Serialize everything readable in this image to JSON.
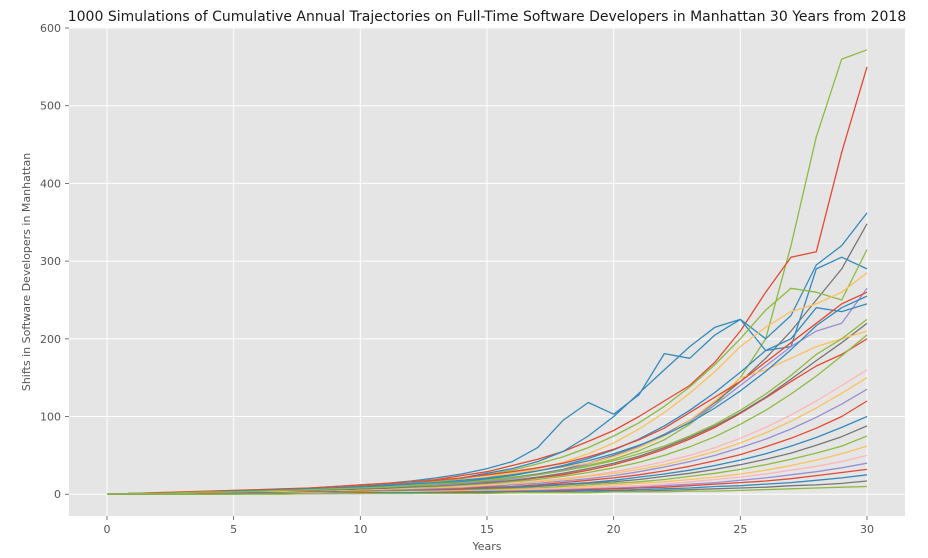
{
  "chart_data": {
    "type": "line",
    "title": "1000 Simulations of Cumulative Annual Trajectories on Full-Time Software Developers in Manhattan 30 Years from 2018",
    "xlabel": "Years",
    "ylabel": "Shifts in Software Developers in Manhattan",
    "xlim": [
      -1.5,
      31.5
    ],
    "ylim": [
      -28,
      600
    ],
    "xticks": [
      0,
      5,
      10,
      15,
      20,
      25,
      30
    ],
    "yticks": [
      0,
      100,
      200,
      300,
      400,
      500,
      600
    ],
    "grid": true,
    "legend": "none",
    "colors": [
      "#E24A33",
      "#348ABD",
      "#988ED5",
      "#777777",
      "#FBC15E",
      "#8EBA42",
      "#FFB5B8"
    ],
    "background": "#E5E5E5",
    "series": [
      {
        "color": "#8EBA42",
        "values": [
          0,
          1,
          1,
          2,
          2,
          3,
          4,
          5,
          6,
          7,
          8,
          10,
          12,
          14,
          16,
          19,
          22,
          26,
          31,
          37,
          45,
          56,
          70,
          90,
          115,
          150,
          200,
          320,
          460,
          560,
          572
        ]
      },
      {
        "color": "#E24A33",
        "values": [
          0,
          1,
          2,
          2,
          3,
          4,
          5,
          6,
          7,
          9,
          11,
          13,
          16,
          19,
          24,
          29,
          37,
          45,
          55,
          68,
          82,
          100,
          120,
          140,
          170,
          210,
          260,
          305,
          312,
          440,
          550
        ]
      },
      {
        "color": "#348ABD",
        "values": [
          0,
          1,
          1,
          2,
          3,
          4,
          5,
          6,
          7,
          8,
          10,
          12,
          14,
          17,
          21,
          27,
          33,
          42,
          55,
          75,
          100,
          130,
          160,
          190,
          215,
          225,
          200,
          230,
          295,
          320,
          362
        ]
      },
      {
        "color": "#777777",
        "values": [
          0,
          1,
          1,
          2,
          2,
          3,
          3,
          4,
          5,
          6,
          7,
          8,
          10,
          12,
          14,
          17,
          21,
          26,
          32,
          40,
          50,
          62,
          77,
          95,
          118,
          145,
          175,
          210,
          250,
          290,
          348
        ]
      },
      {
        "color": "#348ABD",
        "values": [
          0,
          1,
          1,
          2,
          3,
          4,
          5,
          6,
          8,
          10,
          12,
          14,
          17,
          21,
          26,
          33,
          42,
          60,
          95,
          118,
          103,
          128,
          181,
          175,
          205,
          225,
          185,
          190,
          290,
          305,
          290
        ]
      },
      {
        "color": "#8EBA42",
        "values": [
          0,
          1,
          1,
          2,
          2,
          3,
          4,
          5,
          6,
          7,
          9,
          11,
          13,
          16,
          20,
          25,
          31,
          39,
          48,
          60,
          75,
          92,
          113,
          138,
          167,
          200,
          237,
          265,
          260,
          250,
          315
        ]
      },
      {
        "color": "#FBC15E",
        "values": [
          0,
          1,
          1,
          2,
          2,
          3,
          4,
          5,
          6,
          7,
          8,
          10,
          12,
          15,
          18,
          22,
          27,
          33,
          41,
          52,
          66,
          84,
          105,
          130,
          158,
          190,
          215,
          235,
          245,
          260,
          285
        ]
      },
      {
        "color": "#988ED5",
        "values": [
          0,
          1,
          1,
          1,
          2,
          2,
          3,
          3,
          4,
          5,
          6,
          7,
          9,
          11,
          13,
          16,
          20,
          25,
          31,
          39,
          49,
          61,
          76,
          94,
          115,
          140,
          165,
          190,
          210,
          220,
          265
        ]
      },
      {
        "color": "#348ABD",
        "values": [
          0,
          1,
          1,
          2,
          2,
          3,
          3,
          4,
          5,
          6,
          7,
          9,
          11,
          13,
          16,
          20,
          24,
          30,
          37,
          46,
          57,
          71,
          88,
          108,
          131,
          157,
          185,
          200,
          240,
          235,
          245
        ]
      },
      {
        "color": "#E24A33",
        "values": [
          0,
          1,
          1,
          1,
          2,
          2,
          3,
          3,
          4,
          5,
          6,
          7,
          8,
          10,
          12,
          14,
          17,
          21,
          25,
          31,
          38,
          47,
          58,
          71,
          86,
          104,
          124,
          145,
          165,
          180,
          200
        ]
      },
      {
        "color": "#777777",
        "values": [
          0,
          1,
          1,
          1,
          2,
          2,
          3,
          3,
          4,
          5,
          6,
          7,
          9,
          10,
          12,
          15,
          18,
          22,
          27,
          33,
          40,
          49,
          60,
          73,
          88,
          105,
          125,
          148,
          172,
          195,
          220
        ]
      },
      {
        "color": "#8EBA42",
        "values": [
          0,
          1,
          1,
          1,
          2,
          2,
          3,
          3,
          4,
          4,
          5,
          6,
          8,
          9,
          11,
          13,
          16,
          19,
          23,
          28,
          34,
          41,
          50,
          61,
          74,
          90,
          108,
          129,
          152,
          178,
          205
        ]
      },
      {
        "color": "#FFB5B8",
        "values": [
          0,
          1,
          1,
          1,
          2,
          2,
          2,
          3,
          3,
          4,
          5,
          6,
          7,
          8,
          10,
          12,
          14,
          17,
          20,
          24,
          29,
          35,
          42,
          50,
          60,
          72,
          86,
          102,
          120,
          140,
          160
        ]
      },
      {
        "color": "#FBC15E",
        "values": [
          0,
          1,
          1,
          1,
          1,
          2,
          2,
          3,
          3,
          4,
          5,
          6,
          7,
          8,
          9,
          11,
          13,
          16,
          19,
          23,
          27,
          32,
          38,
          46,
          55,
          66,
          79,
          94,
          111,
          130,
          150
        ]
      },
      {
        "color": "#988ED5",
        "values": [
          0,
          0,
          1,
          1,
          1,
          2,
          2,
          2,
          3,
          3,
          4,
          5,
          6,
          7,
          8,
          10,
          12,
          14,
          17,
          20,
          24,
          29,
          35,
          42,
          50,
          60,
          71,
          84,
          99,
          116,
          135
        ]
      },
      {
        "color": "#E24A33",
        "values": [
          0,
          0,
          1,
          1,
          1,
          2,
          2,
          2,
          3,
          3,
          4,
          4,
          5,
          6,
          7,
          9,
          10,
          12,
          15,
          18,
          21,
          25,
          30,
          36,
          43,
          51,
          61,
          72,
          85,
          100,
          120
        ]
      },
      {
        "color": "#348ABD",
        "values": [
          0,
          0,
          1,
          1,
          1,
          1,
          2,
          2,
          2,
          3,
          3,
          4,
          5,
          5,
          6,
          8,
          9,
          11,
          13,
          15,
          18,
          22,
          26,
          31,
          37,
          44,
          52,
          62,
          73,
          86,
          100
        ]
      },
      {
        "color": "#777777",
        "values": [
          0,
          0,
          1,
          1,
          1,
          1,
          2,
          2,
          2,
          3,
          3,
          4,
          4,
          5,
          6,
          7,
          8,
          10,
          12,
          14,
          16,
          19,
          23,
          27,
          32,
          38,
          45,
          53,
          63,
          74,
          88
        ]
      },
      {
        "color": "#8EBA42",
        "values": [
          0,
          0,
          0,
          1,
          1,
          1,
          1,
          2,
          2,
          2,
          3,
          3,
          4,
          4,
          5,
          6,
          7,
          8,
          10,
          12,
          14,
          16,
          19,
          23,
          27,
          32,
          38,
          45,
          53,
          62,
          75
        ]
      },
      {
        "color": "#FBC15E",
        "values": [
          0,
          0,
          0,
          1,
          1,
          1,
          1,
          1,
          2,
          2,
          2,
          3,
          3,
          4,
          4,
          5,
          6,
          7,
          8,
          10,
          12,
          14,
          16,
          19,
          22,
          26,
          31,
          37,
          44,
          52,
          62
        ]
      },
      {
        "color": "#FFB5B8",
        "values": [
          0,
          0,
          0,
          1,
          1,
          1,
          1,
          1,
          2,
          2,
          2,
          2,
          3,
          3,
          4,
          4,
          5,
          6,
          7,
          8,
          10,
          11,
          13,
          16,
          19,
          22,
          26,
          31,
          36,
          42,
          50
        ]
      },
      {
        "color": "#988ED5",
        "values": [
          0,
          0,
          0,
          0,
          1,
          1,
          1,
          1,
          1,
          2,
          2,
          2,
          2,
          3,
          3,
          4,
          4,
          5,
          6,
          7,
          8,
          9,
          11,
          13,
          15,
          18,
          21,
          25,
          29,
          34,
          40
        ]
      },
      {
        "color": "#E24A33",
        "values": [
          0,
          0,
          0,
          0,
          1,
          1,
          1,
          1,
          1,
          1,
          2,
          2,
          2,
          2,
          3,
          3,
          4,
          4,
          5,
          6,
          7,
          8,
          9,
          11,
          13,
          15,
          17,
          20,
          24,
          28,
          32
        ]
      },
      {
        "color": "#348ABD",
        "values": [
          0,
          0,
          0,
          0,
          0,
          1,
          1,
          1,
          1,
          1,
          1,
          2,
          2,
          2,
          2,
          3,
          3,
          4,
          4,
          5,
          5,
          6,
          7,
          8,
          10,
          11,
          13,
          15,
          18,
          21,
          25
        ]
      },
      {
        "color": "#777777",
        "values": [
          0,
          0,
          0,
          0,
          0,
          0,
          1,
          1,
          1,
          1,
          1,
          1,
          1,
          2,
          2,
          2,
          2,
          3,
          3,
          3,
          4,
          4,
          5,
          6,
          7,
          8,
          9,
          11,
          12,
          14,
          17
        ]
      },
      {
        "color": "#8EBA42",
        "values": [
          0,
          0,
          0,
          0,
          0,
          0,
          0,
          0,
          1,
          1,
          1,
          1,
          1,
          1,
          1,
          1,
          2,
          2,
          2,
          2,
          3,
          3,
          3,
          4,
          4,
          5,
          6,
          7,
          8,
          9,
          10
        ]
      },
      {
        "color": "#FBC15E",
        "values": [
          0,
          1,
          2,
          3,
          4,
          5,
          6,
          7,
          8,
          10,
          12,
          14,
          16,
          18,
          21,
          24,
          27,
          31,
          35,
          40,
          48,
          60,
          75,
          95,
          120,
          150,
          160,
          175,
          190,
          200,
          210
        ]
      },
      {
        "color": "#E24A33",
        "values": [
          0,
          1,
          2,
          3,
          4,
          5,
          6,
          7,
          8,
          10,
          12,
          14,
          16,
          18,
          21,
          25,
          29,
          34,
          40,
          48,
          58,
          70,
          85,
          105,
          125,
          145,
          170,
          195,
          220,
          245,
          260
        ]
      },
      {
        "color": "#348ABD",
        "values": [
          0,
          1,
          1,
          2,
          3,
          4,
          5,
          6,
          7,
          8,
          9,
          11,
          13,
          15,
          18,
          21,
          25,
          30,
          36,
          43,
          52,
          63,
          76,
          92,
          111,
          133,
          158,
          186,
          217,
          240,
          255
        ]
      },
      {
        "color": "#8EBA42",
        "values": [
          0,
          1,
          1,
          2,
          3,
          3,
          4,
          5,
          6,
          7,
          8,
          9,
          11,
          13,
          15,
          18,
          21,
          25,
          30,
          36,
          43,
          52,
          62,
          75,
          90,
          108,
          129,
          153,
          180,
          200,
          225
        ]
      }
    ]
  }
}
